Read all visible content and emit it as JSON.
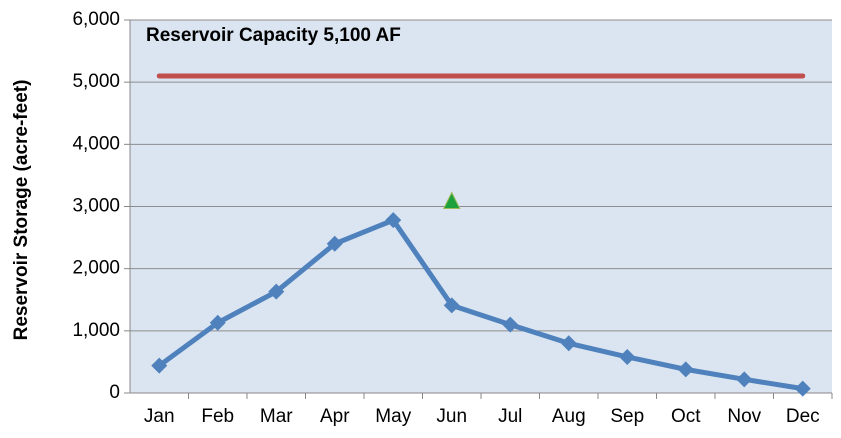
{
  "chart_data": {
    "type": "line",
    "annotations": [
      "Reservoir Capacity  5,100 AF"
    ],
    "ylabel": "Reservoir Storage (acre-feet)",
    "categories": [
      "Jan",
      "Feb",
      "Mar",
      "Apr",
      "May",
      "Jun",
      "Jul",
      "Aug",
      "Sep",
      "Oct",
      "Nov",
      "Dec"
    ],
    "series": [
      {
        "color": "#c0504d",
        "marker": "none",
        "values": [
          5100,
          5100,
          5100,
          5100,
          5100,
          5100,
          5100,
          5100,
          5100,
          5100,
          5100,
          5100
        ]
      },
      {
        "color": "#4f81bd",
        "marker": "diamond",
        "values": [
          440,
          1130,
          1630,
          2400,
          2780,
          1410,
          1100,
          800,
          580,
          380,
          220,
          70
        ]
      },
      {
        "color": "#1ea03c",
        "marker": "triangle",
        "values": [
          null,
          null,
          null,
          null,
          null,
          3080,
          null,
          null,
          null,
          null,
          null,
          null
        ]
      }
    ],
    "ylim": [
      0,
      6000
    ],
    "yticks": [
      0,
      {
        "value": 1000,
        "label": "1,000"
      },
      {
        "value": 2000,
        "label": "2,000"
      },
      {
        "value": 3000,
        "label": "3,000"
      },
      {
        "value": 4000,
        "label": "4,000"
      },
      {
        "value": 5000,
        "label": "5,000"
      },
      {
        "value": 6000,
        "label": "6,000"
      }
    ],
    "grid": true
  }
}
